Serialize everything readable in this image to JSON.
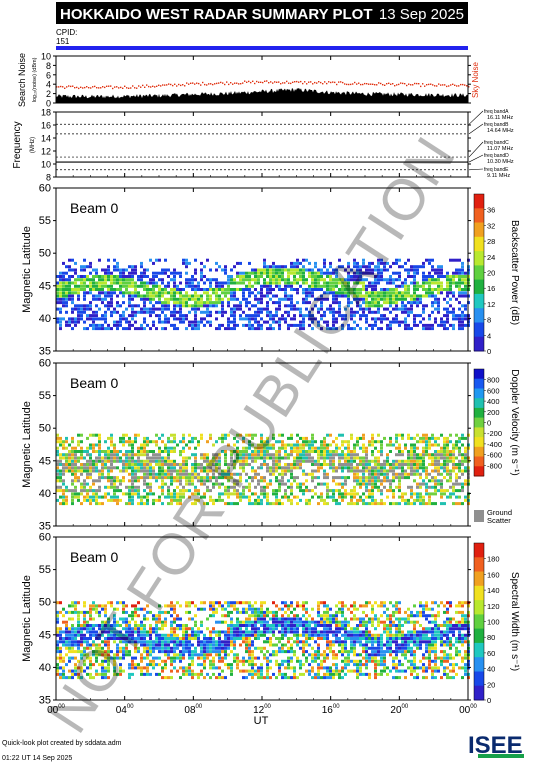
{
  "header": {
    "title": "HOKKAIDO WEST RADAR SUMMARY PLOT",
    "date": "13 Sep 2025",
    "cpid_label": "CPID:",
    "cpid_value": "151"
  },
  "footer": {
    "credit": "Quick-look plot created by sddata.adm",
    "timestamp": "01:22 UT 14 Sep 2025",
    "logo_text": "ISEE"
  },
  "watermark": "NOT FOR PUBLICATION",
  "colors": {
    "header_bg": "#000000",
    "cpid_bar": "#2222ee",
    "sky_noise": "#e03010",
    "ground_scatter": "#909090"
  },
  "chart_data": [
    {
      "type": "area",
      "panel": "search-noise",
      "ylabel": "Search Noise",
      "ylabel_sub": "log₁₀(noise) (dBm)",
      "legend": "Sky Noise",
      "ylim": [
        0,
        10
      ],
      "yticks": [
        0,
        2,
        4,
        6,
        8,
        10
      ],
      "x": [
        0,
        2,
        4,
        6,
        8,
        10,
        12,
        14,
        16,
        18,
        20,
        22,
        24
      ],
      "series": [
        {
          "name": "Sky Noise",
          "values": [
            3.6,
            3.4,
            3.5,
            3.8,
            4.2,
            4.4,
            4.6,
            4.5,
            4.4,
            4.2,
            4.1,
            3.9,
            3.8
          ]
        },
        {
          "name": "",
          "values": [
            1.0,
            0.9,
            1.0,
            1.1,
            1.4,
            1.6,
            2.0,
            2.4,
            1.8,
            1.5,
            1.4,
            1.3,
            1.2
          ]
        }
      ]
    },
    {
      "type": "line",
      "panel": "frequency",
      "ylabel": "Frequency",
      "ylabel_sub": "(MHz)",
      "ylim": [
        8,
        18
      ],
      "yticks": [
        8,
        10,
        12,
        14,
        16,
        18
      ],
      "bands": [
        {
          "label": "freq bandA",
          "freq": "16.11 MHz",
          "value": 16.11
        },
        {
          "label": "freq bandB",
          "freq": "14.64 MHz",
          "value": 14.64
        },
        {
          "label": "freq bandC",
          "freq": "11.07 MHz",
          "value": 11.07
        },
        {
          "label": "freq bandD",
          "freq": "10.30 MHz",
          "value": 10.3
        },
        {
          "label": "freq bandE",
          "freq": "9.11 MHz",
          "value": 9.11
        }
      ],
      "active_value": 10.3
    },
    {
      "type": "heatmap",
      "panel": "power",
      "beam": "Beam  0",
      "ylabel": "Magnetic Latitude",
      "ylim": [
        35,
        60
      ],
      "yticks": [
        35,
        40,
        45,
        50,
        55,
        60
      ],
      "colorbar_label": "Backscatter Power (dB)",
      "colorbar_ticks": [
        "0",
        "4",
        "8",
        "12",
        "16",
        "20",
        "24",
        "28",
        "32",
        "36"
      ],
      "colorbar_min": 0,
      "colorbar_max": 40
    },
    {
      "type": "heatmap",
      "panel": "velocity",
      "beam": "Beam  0",
      "ylabel": "Magnetic Latitude",
      "ylim": [
        35,
        60
      ],
      "yticks": [
        35,
        40,
        45,
        50,
        55,
        60
      ],
      "colorbar_label": "Doppler Velocity (m s⁻¹)",
      "colorbar_ticks": [
        "800",
        "600",
        "400",
        "200",
        "0",
        "-200",
        "-400",
        "-600",
        "-800"
      ],
      "colorbar_min": -1000,
      "colorbar_max": 1000,
      "ground_scatter_label": [
        "Ground",
        "Scatter"
      ]
    },
    {
      "type": "heatmap",
      "panel": "width",
      "beam": "Beam  0",
      "ylabel": "Magnetic Latitude",
      "ylim": [
        35,
        60
      ],
      "yticks": [
        35,
        40,
        45,
        50,
        55,
        60
      ],
      "colorbar_label": "Spectral Width (m s⁻¹)",
      "colorbar_ticks": [
        "0",
        "20",
        "40",
        "60",
        "80",
        "100",
        "120",
        "140",
        "160",
        "180"
      ],
      "colorbar_min": 0,
      "colorbar_max": 200
    }
  ],
  "x_axis": {
    "label": "UT",
    "ticks": [
      {
        "h": "00",
        "m": "00",
        "v": 0
      },
      {
        "h": "04",
        "m": "00",
        "v": 4
      },
      {
        "h": "08",
        "m": "00",
        "v": 8
      },
      {
        "h": "12",
        "m": "00",
        "v": 12
      },
      {
        "h": "16",
        "m": "00",
        "v": 16
      },
      {
        "h": "20",
        "m": "00",
        "v": 20
      },
      {
        "h": "00",
        "m": "00",
        "v": 24
      }
    ],
    "range": [
      0,
      24
    ]
  }
}
